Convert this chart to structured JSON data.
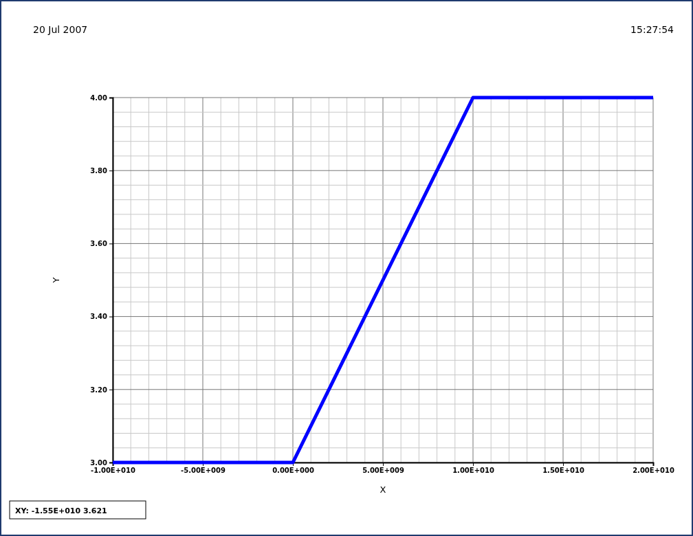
{
  "chart_data": {
    "type": "line",
    "xlabel": "X",
    "ylabel": "Y",
    "x": [
      -10000000000.0,
      0,
      10000000000.0,
      20000000000.0
    ],
    "series": [
      {
        "color": "#0000ff",
        "values": [
          3,
          3,
          4,
          4
        ]
      }
    ],
    "xlim": [
      -10000000000.0,
      20000000000.0
    ],
    "xticks": [
      {
        "value": -10000000000.0,
        "label": "-1.00E+010"
      },
      {
        "value": -5000000000.0,
        "label": "-5.00E+009"
      },
      {
        "value": 0,
        "label": "0.00E+000"
      },
      {
        "value": 5000000000.0,
        "label": "5.00E+009"
      },
      {
        "value": 10000000000.0,
        "label": "1.00E+010"
      },
      {
        "value": 15000000000.0,
        "label": "1.50E+010"
      },
      {
        "value": 20000000000.0,
        "label": "2.00E+010"
      }
    ],
    "ylim": [
      3,
      4
    ],
    "yticks": [
      {
        "value": 3,
        "label": "3.00"
      },
      {
        "value": 3.2,
        "label": "3.20"
      },
      {
        "value": 3.4,
        "label": "3.40"
      },
      {
        "value": 3.6,
        "label": "3.60"
      },
      {
        "value": 3.8,
        "label": "3.80"
      },
      {
        "value": 4,
        "label": "4.00"
      }
    ],
    "grid": true,
    "marker": "none",
    "line_style": "solid",
    "annotations": [
      "20 Jul 2007",
      "15:27:54",
      "XY: -1.55E+010 3.621"
    ]
  }
}
